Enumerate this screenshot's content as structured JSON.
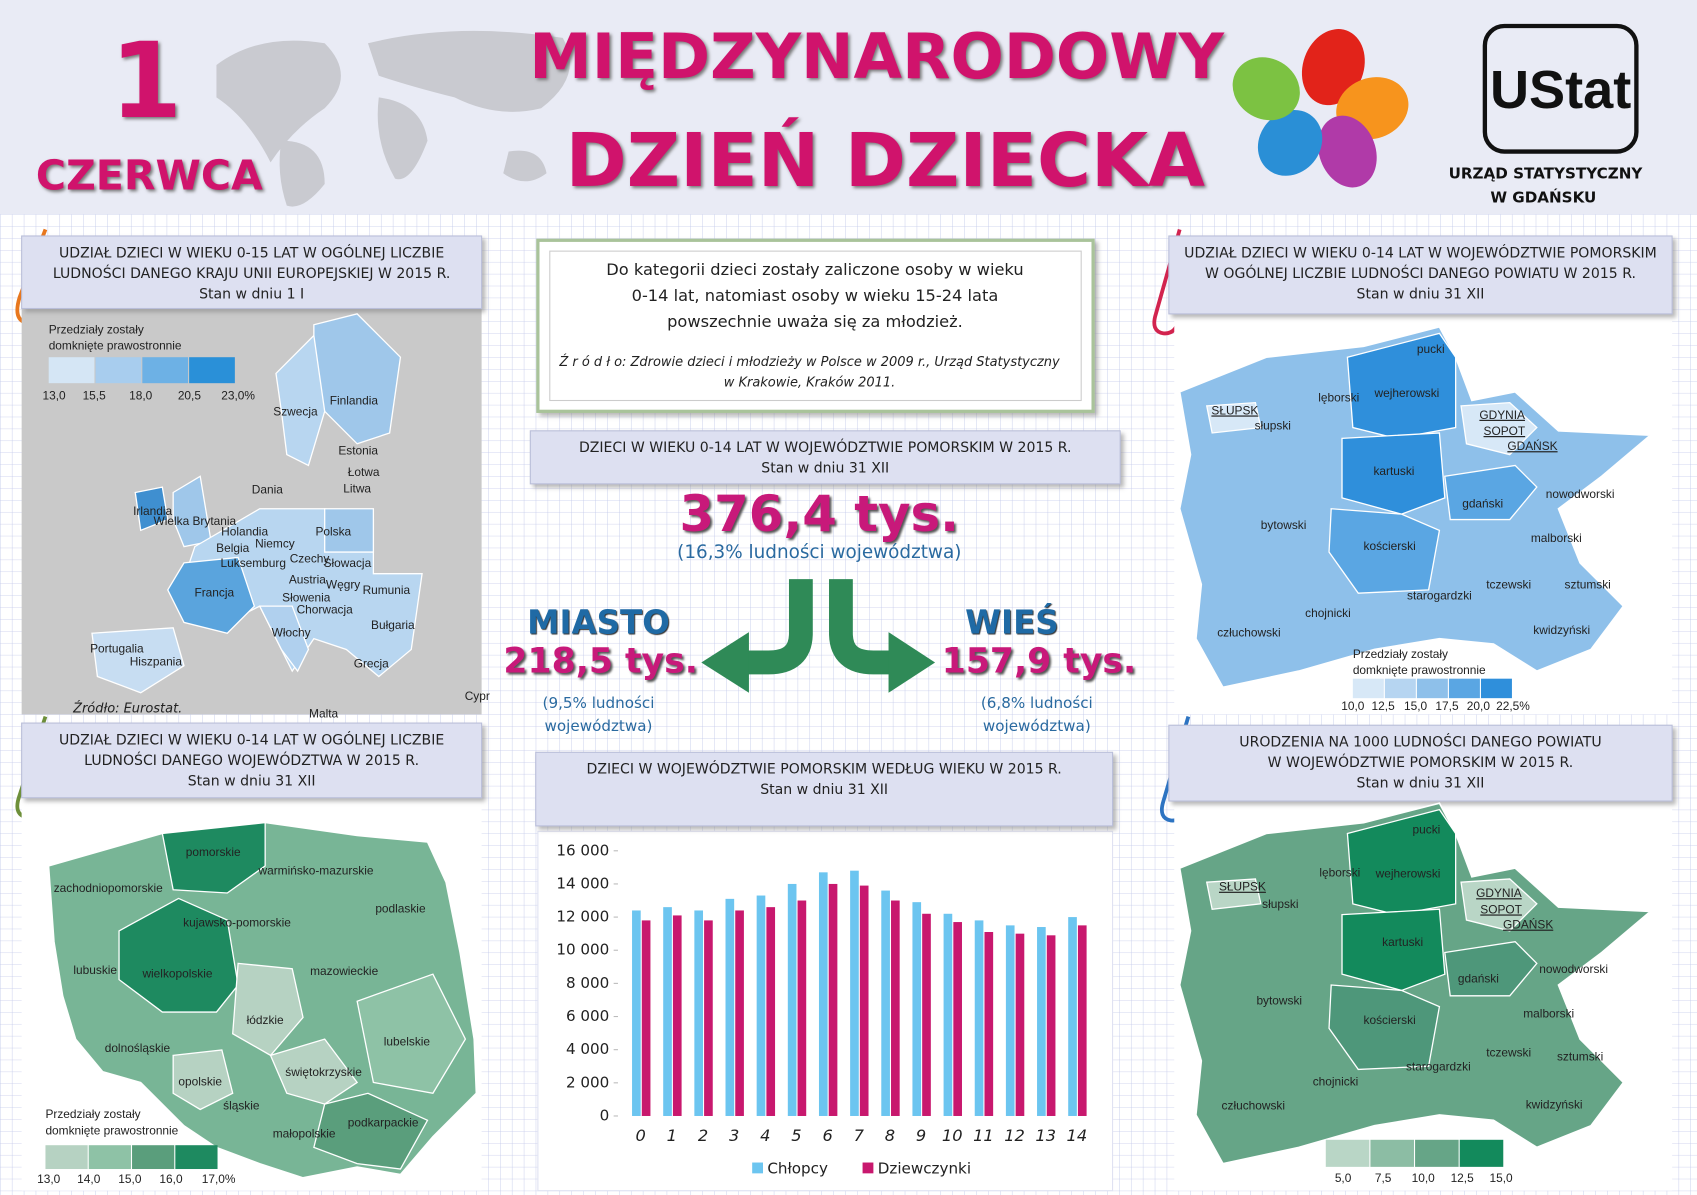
{
  "header": {
    "day": "1",
    "month": "CZERWCA",
    "title_line1": "MIĘDZYNARODOWY",
    "title_line2": "DZIEŃ DZIECKA",
    "logo": "UStat",
    "office": [
      "URZĄD STATYSTYCZNY",
      "W GDAŃSKU"
    ]
  },
  "note": {
    "lines": [
      "Do kategorii dzieci zostały zaliczone osoby w wieku",
      "0-14 lat, natomiast osoby w wieku 15-24 lata",
      "powszechnie uważa się za młodzież."
    ],
    "source": [
      "Ź r ó d ł o: Zdrowie dzieci i młodzieży w Polsce w 2009 r., Urząd Statystyczny",
      "w Krakowie, Kraków 2011."
    ]
  },
  "panels": [
    {
      "title": [
        "UDZIAŁ DZIECI W WIEKU 0-15 LAT W OGÓLNEJ LICZBIE",
        "LUDNOŚCI DANEGO KRAJU UNII EUROPEJSKIEJ W 2015 R."
      ],
      "date": "Stan w dniu 1 I"
    },
    {
      "title": [
        "DZIECI W WIEKU 0-14 LAT W WOJEWÓDZTWIE POMORSKIM W 2015 R."
      ],
      "date": "Stan w dniu 31 XII"
    },
    {
      "title": [
        "UDZIAŁ DZIECI W WIEKU 0-14 LAT W WOJEWÓDZTWIE POMORSKIM",
        "W OGÓLNEJ LICZBIE LUDNOŚCI DANEGO POWIATU W 2015 R."
      ],
      "date": "Stan w dniu 31 XII"
    },
    {
      "title": [
        "UDZIAŁ DZIECI W WIEKU 0-14 LAT W OGÓLNEJ LICZBIE",
        "LUDNOŚCI DANEGO WOJEWÓDZTWA W 2015 R."
      ],
      "date": "Stan w dniu 31 XII"
    },
    {
      "title": [
        "DZIECI W WOJEWÓDZTWIE POMORSKIM WEDŁUG WIEKU W 2015 R."
      ],
      "date": "Stan w dniu 31 XII"
    },
    {
      "title": [
        "URODZENIA NA 1000 LUDNOŚCI DANEGO POWIATU",
        "W WOJEWÓDZTWIE POMORSKIM W 2015 R."
      ],
      "date": "Stan w dniu 31 XII"
    }
  ],
  "totals": {
    "total": "376,4 tys.",
    "total_note": "(16,3% ludności województwa)",
    "city": {
      "name": "MIASTO",
      "value": "218,5 tys.",
      "note": [
        "(9,5% ludności",
        "województwa)"
      ]
    },
    "village": {
      "name": "WIEŚ",
      "value": "157,9 tys.",
      "note": [
        "(6,8% ludności",
        "województwa)"
      ]
    }
  },
  "eu_map": {
    "labels": [
      "Finlandia",
      "Szwecja",
      "Estonia",
      "Łotwa",
      "Litwa",
      "Dania",
      "Irlandia",
      "Wielka Brytania",
      "Holandia",
      "Niemcy",
      "Polska",
      "Belgia",
      "Luksemburg",
      "Czechy",
      "Słowacja",
      "Austria",
      "Węgry",
      "Rumunia",
      "Francja",
      "Słowenia",
      "Chorwacja",
      "Bułgaria",
      "Włochy",
      "Portugalia",
      "Hiszpania",
      "Grecja",
      "Cypr",
      "Malta"
    ],
    "source": "Źródło: Eurostat.",
    "legend": {
      "caption": [
        "Przedziały zostały",
        "domknięte prawostronnie"
      ],
      "labels": [
        "13,0",
        "15,5",
        "18,0",
        "20,5",
        "23,0%"
      ]
    }
  },
  "poland_map": {
    "labels": [
      "pomorskie",
      "warmińsko-mazurskie",
      "zachodniopomorskie",
      "kujawsko-pomorskie",
      "podlaskie",
      "lubuskie",
      "wielkopolskie",
      "mazowieckie",
      "łódzkie",
      "dolnośląskie",
      "lubelskie",
      "opolskie",
      "świętokrzyskie",
      "śląskie",
      "podkarpackie",
      "małopolskie"
    ],
    "legend": {
      "caption": [
        "Przedziały zostały",
        "domknięte prawostronnie"
      ],
      "labels": [
        "13,0",
        "14,0",
        "15,0",
        "16,0",
        "17,0%"
      ]
    }
  },
  "share_map": {
    "labels": [
      "pucki",
      "lęborski",
      "wejherowski",
      "SŁUPSK",
      "słupski",
      "GDYNIA",
      "SOPOT",
      "GDAŃSK",
      "kartuski",
      "gdański",
      "nowodworski",
      "bytowski",
      "malborski",
      "kościerski",
      "tczewski",
      "sztumski",
      "starogardzki",
      "chojnicki",
      "człuchowski",
      "kwidzyński"
    ],
    "legend": {
      "caption": [
        "Przedziały zostały",
        "domknięte prawostronnie"
      ],
      "labels": [
        "10,0",
        "12,5",
        "15,0",
        "17,5",
        "20,0",
        "22,5%"
      ]
    }
  },
  "births_map": {
    "labels": [
      "pucki",
      "lęborski",
      "wejherowski",
      "SŁUPSK",
      "słupski",
      "GDYNIA",
      "SOPOT",
      "GDAŃSK",
      "kartuski",
      "gdański",
      "nowodworski",
      "bytowski",
      "malborski",
      "kościerski",
      "tczewski",
      "sztumski",
      "starogardzki",
      "chojnicki",
      "człuchowski",
      "kwidzyński"
    ],
    "legend": {
      "labels": [
        "5,0",
        "7,5",
        "10,0",
        "12,5",
        "15,0"
      ]
    }
  },
  "chart_data": {
    "type": "bar",
    "categories": [
      0,
      1,
      2,
      3,
      4,
      5,
      6,
      7,
      8,
      9,
      10,
      11,
      12,
      13,
      14
    ],
    "series": [
      {
        "name": "Chłopcy",
        "color": "#6cc5f0",
        "values": [
          12400,
          12600,
          12400,
          13100,
          13300,
          14000,
          14700,
          14800,
          13600,
          12900,
          12200,
          11800,
          11500,
          11400,
          12000
        ]
      },
      {
        "name": "Dziewczynki",
        "color": "#c8186e",
        "values": [
          11800,
          12100,
          11800,
          12400,
          12600,
          13000,
          14000,
          13900,
          13000,
          12200,
          11700,
          11100,
          11000,
          10900,
          11500
        ]
      }
    ],
    "ylim": [
      0,
      16000
    ],
    "yticks": [
      0,
      {
        "value": 2000,
        "label": "2 000"
      },
      {
        "value": 4000,
        "label": "4 000"
      },
      {
        "value": 6000,
        "label": "6 000"
      },
      {
        "value": 8000,
        "label": "8 000"
      },
      {
        "value": 10000,
        "label": "10 000"
      },
      {
        "value": 12000,
        "label": "12 000"
      },
      {
        "value": 14000,
        "label": "14 000"
      },
      {
        "value": 16000,
        "label": "16 000"
      }
    ],
    "grid": false
  }
}
